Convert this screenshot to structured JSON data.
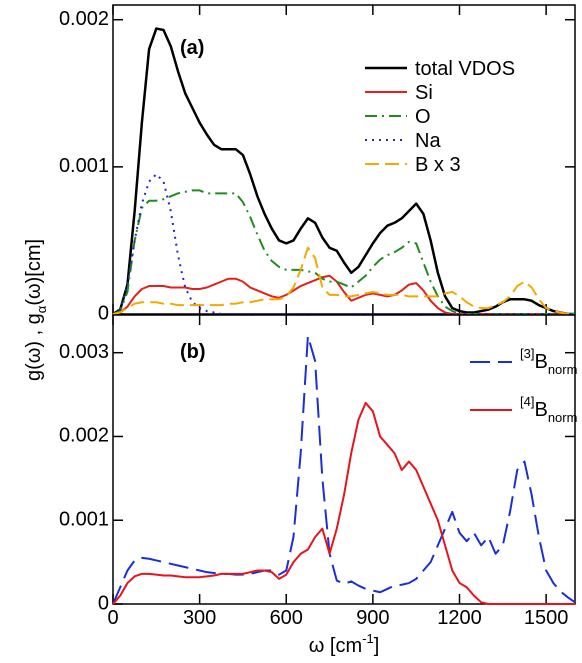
{
  "chart_data": [
    {
      "type": "line",
      "annotation": "(a)",
      "legend": "upper right",
      "xlim": [
        0,
        1600
      ],
      "xticks": [
        0,
        300,
        600,
        900,
        1200,
        1500
      ],
      "ylim": [
        0,
        0.0021
      ],
      "yticks": [
        0,
        0.001,
        0.002
      ],
      "x": [
        0,
        25,
        50,
        75,
        100,
        125,
        150,
        175,
        200,
        225,
        250,
        275,
        300,
        325,
        350,
        375,
        400,
        425,
        450,
        475,
        500,
        525,
        550,
        575,
        600,
        625,
        650,
        675,
        700,
        725,
        750,
        775,
        800,
        825,
        850,
        875,
        900,
        925,
        950,
        975,
        1000,
        1025,
        1050,
        1075,
        1100,
        1125,
        1150,
        1175,
        1200,
        1225,
        1250,
        1275,
        1300,
        1325,
        1350,
        1375,
        1400,
        1425,
        1450,
        1475,
        1500,
        1525,
        1550,
        1575,
        1600
      ],
      "series": [
        {
          "name": "total VDOS",
          "color": "#000000",
          "linestyle": "solid",
          "values": [
            0,
            3e-05,
            0.0002,
            0.0007,
            0.0013,
            0.0018,
            0.00194,
            0.00193,
            0.00182,
            0.00165,
            0.0015,
            0.0014,
            0.0013,
            0.00122,
            0.00115,
            0.00112,
            0.00112,
            0.00112,
            0.00108,
            0.00095,
            0.0008,
            0.00068,
            0.00058,
            0.0005,
            0.00048,
            0.0005,
            0.00058,
            0.00065,
            0.00062,
            0.00052,
            0.00045,
            0.00043,
            0.00035,
            0.00028,
            0.00032,
            0.0004,
            0.00048,
            0.00055,
            0.0006,
            0.00062,
            0.00065,
            0.0007,
            0.00075,
            0.00068,
            0.0005,
            0.00028,
            0.00012,
            4e-05,
            2e-05,
            1e-05,
            1e-05,
            2e-05,
            3e-05,
            5e-05,
            8e-05,
            0.0001,
            0.0001,
            0.0001,
            9e-05,
            6e-05,
            4e-05,
            2e-05,
            1e-05,
            0,
            0
          ]
        },
        {
          "name": "Si",
          "color": "#e3211c",
          "linestyle": "solid",
          "values": [
            0,
            1e-05,
            5e-05,
            0.00012,
            0.00017,
            0.00019,
            0.00019,
            0.00019,
            0.00018,
            0.00018,
            0.00018,
            0.00017,
            0.00017,
            0.00018,
            0.0002,
            0.00022,
            0.00024,
            0.00024,
            0.00022,
            0.00018,
            0.00016,
            0.00014,
            0.00012,
            0.00011,
            0.00013,
            0.00016,
            0.00019,
            0.00021,
            0.00023,
            0.00025,
            0.00026,
            0.00022,
            0.00015,
            9e-05,
            0.00011,
            0.00013,
            0.00014,
            0.00013,
            0.00012,
            0.00013,
            0.00016,
            0.0002,
            0.00021,
            0.00016,
            9e-05,
            4e-05,
            1e-05,
            0,
            0,
            0,
            0,
            0,
            0,
            0,
            0,
            0,
            0,
            0,
            0,
            0,
            0,
            0,
            0,
            0,
            0
          ]
        },
        {
          "name": "O",
          "color": "#1e8c1e",
          "linestyle": "dashdot",
          "values": [
            0,
            2e-05,
            0.00015,
            0.0005,
            0.00072,
            0.00077,
            0.00077,
            0.00078,
            0.0008,
            0.00082,
            0.00083,
            0.00084,
            0.00084,
            0.00082,
            0.00082,
            0.00082,
            0.00082,
            0.00082,
            0.00076,
            0.00066,
            0.00054,
            0.00043,
            0.00036,
            0.00032,
            0.0003,
            0.0003,
            0.0003,
            0.00029,
            0.00028,
            0.00024,
            0.00022,
            0.00022,
            0.0002,
            0.00018,
            0.00022,
            0.00026,
            0.00032,
            0.00037,
            0.0004,
            0.00042,
            0.00045,
            0.00049,
            0.00048,
            0.00035,
            0.00022,
            0.00012,
            5e-05,
            2e-05,
            0,
            0,
            0,
            0,
            0,
            0,
            0,
            0,
            0,
            0,
            0,
            0,
            0,
            0,
            0,
            0,
            0
          ]
        },
        {
          "name": "Na",
          "color": "#1f24d6",
          "linestyle": "dotted",
          "values": [
            0,
            3e-05,
            0.0002,
            0.0005,
            0.00075,
            0.0009,
            0.00095,
            0.0009,
            0.0007,
            0.0004,
            0.00018,
            8e-05,
            4e-05,
            2e-05,
            1e-05,
            0,
            0,
            0,
            0,
            0,
            0,
            0,
            0,
            0,
            0,
            0,
            0,
            0,
            0,
            0,
            0,
            0,
            0,
            0,
            0,
            0,
            0,
            0,
            0,
            0,
            0,
            0,
            0,
            0,
            0,
            0,
            0,
            0,
            0,
            0,
            0,
            0,
            0,
            0,
            0,
            0,
            0,
            0,
            0,
            0,
            0,
            0,
            0,
            0,
            0
          ]
        },
        {
          "name": "B x 3",
          "color": "#f5a800",
          "linestyle": "dashed",
          "values": [
            0,
            1e-05,
            4e-05,
            7e-05,
            8e-05,
            8e-05,
            8e-05,
            7e-05,
            7e-05,
            6e-05,
            6e-05,
            6e-05,
            6e-05,
            6e-05,
            6e-05,
            6e-05,
            7e-05,
            7e-05,
            8e-05,
            8e-05,
            9e-05,
            0.0001,
            0.0001,
            0.0001,
            0.00012,
            0.00018,
            0.0003,
            0.00045,
            0.00038,
            0.00018,
            0.00013,
            0.00013,
            0.00012,
            0.00012,
            0.00013,
            0.00014,
            0.00015,
            0.00014,
            0.00013,
            0.00013,
            0.00013,
            0.00012,
            0.00012,
            0.00012,
            0.00012,
            0.00012,
            0.00014,
            0.00015,
            0.00012,
            8e-05,
            5e-05,
            4e-05,
            4e-05,
            6e-05,
            8e-05,
            0.00012,
            0.00019,
            0.00022,
            0.00018,
            0.0001,
            4e-05,
            2e-05,
            1e-05,
            0,
            0
          ]
        }
      ]
    },
    {
      "type": "line",
      "annotation": "(b)",
      "legend": "upper right",
      "xlabel": [
        "ω [cm",
        "-1",
        "]"
      ],
      "ylabel": [
        "g(ω) , g",
        "α",
        "(ω)[cm]"
      ],
      "xlim": [
        0,
        1600
      ],
      "xticks": [
        0,
        300,
        600,
        900,
        1200,
        1500
      ],
      "ylim": [
        0,
        0.00345
      ],
      "yticks": [
        0,
        0.001,
        0.002,
        0.003
      ],
      "x": [
        0,
        25,
        50,
        75,
        100,
        125,
        150,
        175,
        200,
        225,
        250,
        275,
        300,
        325,
        350,
        375,
        400,
        425,
        450,
        475,
        500,
        525,
        550,
        575,
        600,
        625,
        650,
        675,
        700,
        725,
        750,
        775,
        800,
        825,
        850,
        875,
        900,
        925,
        950,
        975,
        1000,
        1025,
        1050,
        1075,
        1100,
        1125,
        1150,
        1175,
        1200,
        1225,
        1250,
        1275,
        1300,
        1325,
        1350,
        1375,
        1400,
        1425,
        1450,
        1475,
        1500,
        1525,
        1550,
        1575,
        1600
      ],
      "series": [
        {
          "name": [
            "[3]",
            "B",
            "norm"
          ],
          "color": "#1a2fd8",
          "linestyle": "longdash",
          "values": [
            0,
            0.0002,
            0.0004,
            0.00052,
            0.00055,
            0.00054,
            0.00052,
            0.0005,
            0.00048,
            0.00046,
            0.00044,
            0.00042,
            0.0004,
            0.00038,
            0.00037,
            0.00036,
            0.00036,
            0.00035,
            0.00035,
            0.00036,
            0.00038,
            0.0004,
            0.0004,
            0.00035,
            0.0004,
            0.0008,
            0.0018,
            0.0032,
            0.0029,
            0.0015,
            0.0006,
            0.00028,
            0.00024,
            0.00027,
            0.00022,
            0.00018,
            0.00016,
            0.00014,
            0.00018,
            0.00022,
            0.00023,
            0.00025,
            0.0003,
            0.0004,
            0.0005,
            0.0007,
            0.0009,
            0.0011,
            0.00085,
            0.00075,
            0.00085,
            0.0007,
            0.0008,
            0.0006,
            0.0007,
            0.0011,
            0.0016,
            0.0017,
            0.0013,
            0.0008,
            0.0004,
            0.00025,
            0.00015,
            8e-05,
            2e-05
          ]
        },
        {
          "name": [
            "[4]",
            "B",
            "norm"
          ],
          "color": "#e8141b",
          "linestyle": "solid",
          "values": [
            0,
            0.0001,
            0.00025,
            0.00033,
            0.00036,
            0.00036,
            0.00035,
            0.00034,
            0.00034,
            0.00033,
            0.00032,
            0.00032,
            0.00032,
            0.00033,
            0.00034,
            0.00036,
            0.00036,
            0.00036,
            0.00036,
            0.00038,
            0.0004,
            0.0004,
            0.00038,
            0.0003,
            0.00035,
            0.0005,
            0.0006,
            0.00065,
            0.0008,
            0.0009,
            0.0006,
            0.0009,
            0.0013,
            0.0018,
            0.0022,
            0.0024,
            0.0023,
            0.002,
            0.0019,
            0.0018,
            0.0016,
            0.0017,
            0.0016,
            0.0014,
            0.0012,
            0.001,
            0.0007,
            0.0004,
            0.00025,
            0.0002,
            0.0001,
            2e-05,
            0,
            0,
            0,
            0,
            0,
            0,
            0,
            0,
            0,
            0,
            0,
            0,
            0
          ]
        }
      ]
    }
  ]
}
